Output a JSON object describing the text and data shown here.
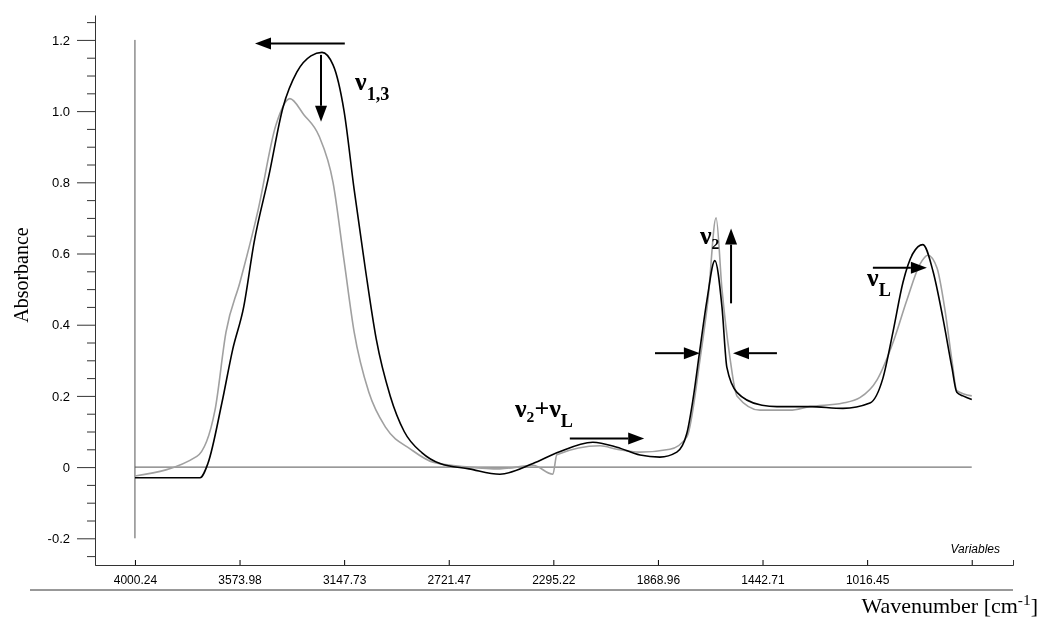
{
  "chart_data": {
    "type": "line",
    "xlabel": "Wavenumber [cm$^{-1}$]",
    "ylabel": "Absorbance",
    "xlim": [
      4163,
      422
    ],
    "ylim": [
      -0.275,
      1.27
    ],
    "xticks": [
      4000.24,
      3573.98,
      3147.73,
      2721.47,
      2295.22,
      1868.96,
      1442.71,
      1016.45,
      {
        "value": 590.19,
        "label": null
      }
    ],
    "yticks": [
      {
        "value": -0.25,
        "label": null
      },
      -0.2,
      {
        "value": -0.15,
        "label": null
      },
      {
        "value": -0.1,
        "label": null
      },
      {
        "value": -0.05,
        "label": null
      },
      0,
      {
        "value": 0.05,
        "label": null
      },
      {
        "value": 0.1,
        "label": null
      },
      {
        "value": 0.15,
        "label": null
      },
      0.2,
      {
        "value": 0.25,
        "label": null
      },
      {
        "value": 0.3,
        "label": null
      },
      {
        "value": 0.35,
        "label": null
      },
      0.4,
      {
        "value": 0.45,
        "label": null
      },
      {
        "value": 0.5,
        "label": null
      },
      {
        "value": 0.55,
        "label": null
      },
      0.6,
      {
        "value": 0.65,
        "label": null
      },
      {
        "value": 0.7,
        "label": null
      },
      {
        "value": 0.75,
        "label": null
      },
      0.8,
      {
        "value": 0.85,
        "label": null
      },
      {
        "value": 0.9,
        "label": null
      },
      {
        "value": 0.95,
        "label": null
      },
      {
        "value": 1.0,
        "label": "1.0"
      },
      {
        "value": 1.05,
        "label": null
      },
      {
        "value": 1.1,
        "label": null
      },
      {
        "value": 1.15,
        "label": null
      },
      1.2,
      {
        "value": 1.25,
        "label": null
      }
    ],
    "grid": false,
    "marker": "none",
    "line_style": "solid",
    "ref_lines": [
      {
        "axis": "y",
        "value": 0,
        "color": "#555555"
      },
      {
        "axis": "x",
        "value": 4000.24,
        "color": "#555555"
      }
    ],
    "series": [
      {
        "color": "#000000",
        "x": [
          4000,
          3735,
          3703,
          3646,
          3602,
          3557,
          3515,
          3454,
          3397,
          3340,
          3283,
          3238,
          3193,
          3148,
          3107,
          3062,
          3017,
          2960,
          2903,
          2830,
          2757,
          2639,
          2513,
          2378,
          2281,
          2134,
          2036,
          1942,
          1861,
          1792,
          1751,
          1726,
          1698,
          1669,
          1637,
          1608,
          1588,
          1547,
          1453,
          1384,
          1250,
          1115,
          1005,
          952,
          911,
          870,
          830,
          789,
          748,
          708,
          671,
          651,
          626,
          590
        ],
        "values": [
          -0.03,
          -0.03,
          0.01,
          0.18,
          0.33,
          0.45,
          0.63,
          0.82,
          1.01,
          1.11,
          1.155,
          1.165,
          1.13,
          1.0,
          0.78,
          0.56,
          0.36,
          0.2,
          0.1,
          0.04,
          0.01,
          -0.005,
          -0.02,
          0.01,
          0.04,
          0.07,
          0.056,
          0.034,
          0.028,
          0.042,
          0.095,
          0.19,
          0.33,
          0.47,
          0.58,
          0.45,
          0.28,
          0.21,
          0.175,
          0.17,
          0.17,
          0.165,
          0.18,
          0.25,
          0.38,
          0.52,
          0.6,
          0.625,
          0.55,
          0.42,
          0.28,
          0.21,
          0.2,
          0.19
        ]
      },
      {
        "color": "#a0a0a0",
        "x": [
          4000,
          3748,
          3674,
          3629,
          3572,
          3499,
          3426,
          3369,
          3312,
          3250,
          3193,
          3148,
          3107,
          3047,
          2977,
          2876,
          2786,
          2639,
          2513,
          2378,
          2297,
          2281,
          2105,
          2036,
          1942,
          1820,
          1751,
          1698,
          1665,
          1632,
          1608,
          1576,
          1547,
          1453,
          1331,
          1250,
          1115,
          1046,
          976,
          911,
          854,
          801,
          769,
          732,
          699,
          671,
          651,
          590
        ],
        "values": [
          -0.025,
          0.03,
          0.16,
          0.38,
          0.52,
          0.72,
          0.96,
          1.035,
          0.99,
          0.93,
          0.8,
          0.58,
          0.38,
          0.21,
          0.11,
          0.05,
          0.014,
          0.0,
          -0.005,
          0.005,
          -0.02,
          0.035,
          0.06,
          0.05,
          0.042,
          0.05,
          0.085,
          0.3,
          0.47,
          0.7,
          0.5,
          0.31,
          0.2,
          0.16,
          0.16,
          0.17,
          0.18,
          0.195,
          0.245,
          0.35,
          0.47,
          0.57,
          0.595,
          0.56,
          0.44,
          0.3,
          0.215,
          0.2
        ]
      }
    ],
    "annotations": [
      "ν$_{1,3}$",
      "ν₂+ν$_{L}$",
      "ν₂",
      "ν$_{L}$",
      "Variables"
    ]
  }
}
